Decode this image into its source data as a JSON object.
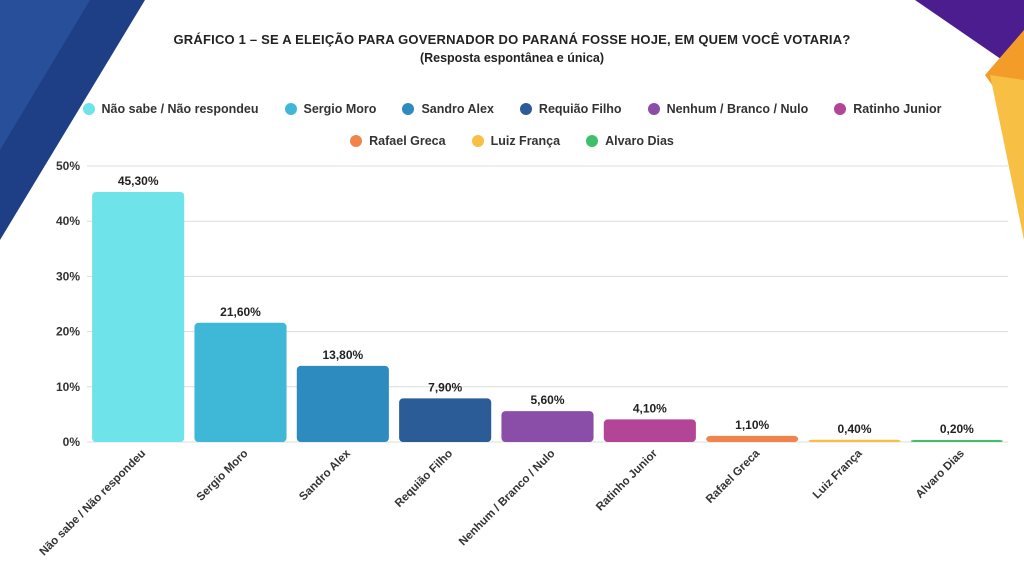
{
  "colors": {
    "deco_blue": "#1e3f86",
    "deco_purple": "#4b1d8f",
    "deco_orange": "#f39c2a",
    "grid": "#dcdcdc"
  },
  "chart_data": {
    "type": "bar",
    "title": "GRÁFICO 1 – SE A ELEIÇÃO PARA GOVERNADOR DO PARANÁ FOSSE HOJE, EM QUEM VOCÊ VOTARIA?",
    "subtitle": "(Resposta espontânea e única)",
    "xlabel": "",
    "ylabel": "",
    "ylim": [
      0,
      50
    ],
    "yticks": [
      0,
      10,
      20,
      30,
      40,
      50
    ],
    "ytick_labels": [
      "0%",
      "10%",
      "20%",
      "30%",
      "40%",
      "50%"
    ],
    "grid": true,
    "legend_position": "top",
    "categories": [
      "Não sabe / Não respondeu",
      "Sergio Moro",
      "Sandro Alex",
      "Requião Filho",
      "Nenhum / Branco / Nulo",
      "Ratinho Junior",
      "Rafael Greca",
      "Luiz França",
      "Alvaro Dias"
    ],
    "values": [
      45.3,
      21.6,
      13.8,
      7.9,
      5.6,
      4.1,
      1.1,
      0.4,
      0.2
    ],
    "value_labels": [
      "45,30%",
      "21,60%",
      "13,80%",
      "7,90%",
      "5,60%",
      "4,10%",
      "1,10%",
      "0,40%",
      "0,20%"
    ],
    "bar_colors": [
      "#6fe3ea",
      "#3fb8d8",
      "#2e8bbf",
      "#2b5c98",
      "#8a4ea9",
      "#b34596",
      "#f0844a",
      "#f7c045",
      "#3fbf6a"
    ],
    "legend": [
      {
        "label": "Não sabe / Não respondeu",
        "color": "#6fe3ea"
      },
      {
        "label": "Sergio Moro",
        "color": "#3fb8d8"
      },
      {
        "label": "Sandro Alex",
        "color": "#2e8bbf"
      },
      {
        "label": "Requião Filho",
        "color": "#2b5c98"
      },
      {
        "label": "Nenhum / Branco / Nulo",
        "color": "#8a4ea9"
      },
      {
        "label": "Ratinho Junior",
        "color": "#b34596"
      },
      {
        "label": "Rafael Greca",
        "color": "#f0844a"
      },
      {
        "label": "Luiz França",
        "color": "#f7c045"
      },
      {
        "label": "Alvaro Dias",
        "color": "#3fbf6a"
      }
    ]
  }
}
